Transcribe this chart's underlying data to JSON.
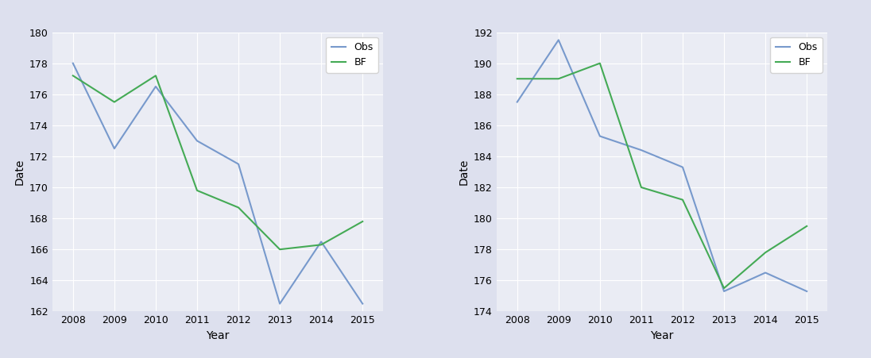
{
  "left": {
    "years": [
      2008,
      2009,
      2010,
      2011,
      2012,
      2013,
      2014,
      2015
    ],
    "obs": [
      178.0,
      172.5,
      176.5,
      173.0,
      171.5,
      162.5,
      166.5,
      162.5
    ],
    "bf": [
      177.2,
      175.5,
      177.2,
      169.8,
      168.7,
      166.0,
      166.3,
      167.8
    ],
    "ylim": [
      162,
      180
    ],
    "yticks": [
      162,
      164,
      166,
      168,
      170,
      172,
      174,
      176,
      178,
      180
    ]
  },
  "right": {
    "years": [
      2008,
      2009,
      2010,
      2011,
      2012,
      2013,
      2014,
      2015
    ],
    "obs": [
      187.5,
      191.5,
      185.3,
      184.4,
      183.3,
      175.3,
      176.5,
      175.3
    ],
    "bf": [
      189.0,
      189.0,
      190.0,
      182.0,
      181.2,
      175.5,
      177.8,
      179.5
    ],
    "ylim": [
      174,
      192
    ],
    "yticks": [
      174,
      176,
      178,
      180,
      182,
      184,
      186,
      188,
      190,
      192
    ]
  },
  "obs_color": "#7799cc",
  "bf_color": "#44aa55",
  "plot_bg_color": "#eaecf4",
  "fig_bg_color": "#dde0ee",
  "xlabel": "Year",
  "ylabel": "Date",
  "legend_obs": "Obs",
  "legend_bf": "BF",
  "line_width": 1.5,
  "tick_fontsize": 9,
  "label_fontsize": 10
}
